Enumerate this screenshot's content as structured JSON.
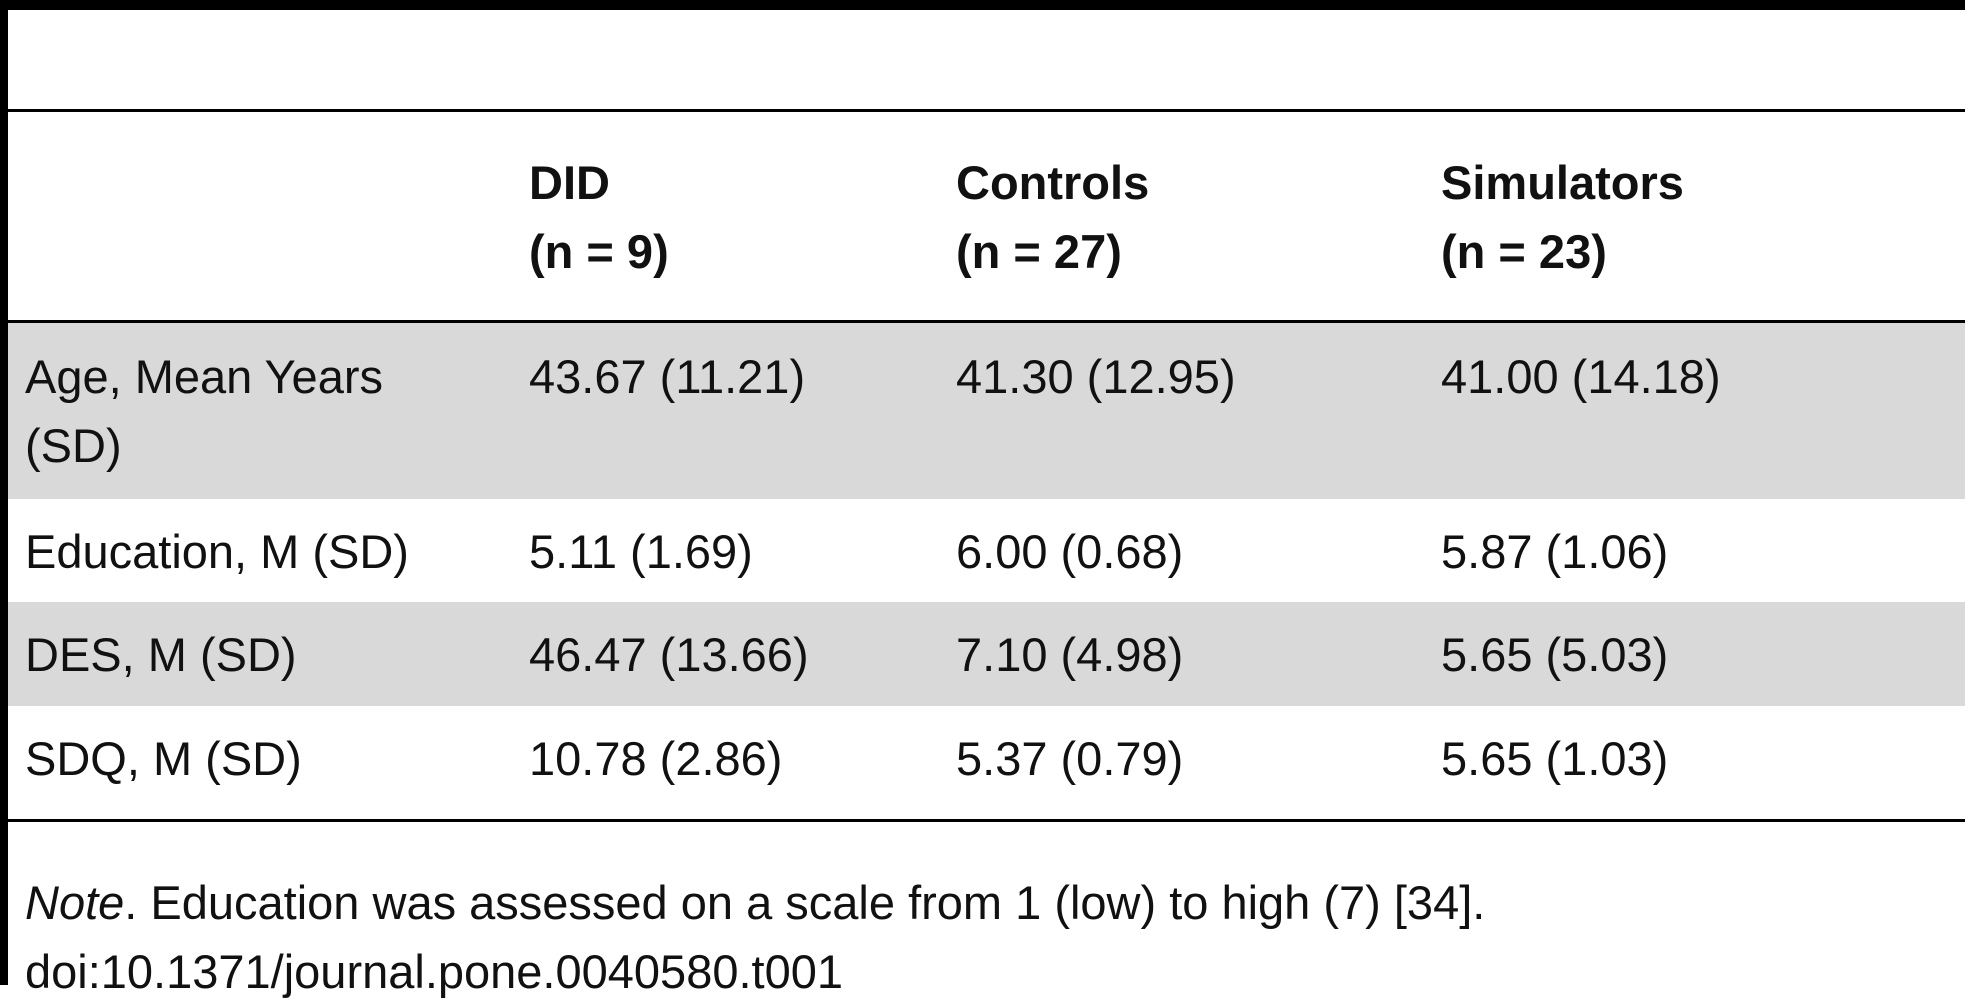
{
  "table": {
    "header": [
      [],
      [
        "DID",
        "(n = 9)"
      ],
      [
        "Controls",
        "(n = 27)"
      ],
      [
        "Simulators",
        "(n = 23)"
      ]
    ],
    "rows": [
      [
        [
          "Age, Mean Years",
          "(SD)"
        ],
        [
          "43.67 (11.21)"
        ],
        [
          "41.30 (12.95)"
        ],
        [
          "41.00 (14.18)"
        ]
      ],
      [
        [
          "Education, M (SD)"
        ],
        [
          "5.11 (1.69)"
        ],
        [
          "6.00 (0.68)"
        ],
        [
          "5.87 (1.06)"
        ]
      ],
      [
        [
          "DES, M (SD)"
        ],
        [
          "46.47 (13.66)"
        ],
        [
          "7.10 (4.98)"
        ],
        [
          "5.65 (5.03)"
        ]
      ],
      [
        [
          "SDQ, M (SD)"
        ],
        [
          "10.78 (2.86)"
        ],
        [
          "5.37 (0.79)"
        ],
        [
          "5.65 (1.03)"
        ]
      ]
    ]
  },
  "footnote": {
    "label": "Note",
    "text": ". Education was assessed on a scale from 1 (low) to high (7) [34].",
    "doi": "doi:10.1371/journal.pone.0040580.t001"
  }
}
